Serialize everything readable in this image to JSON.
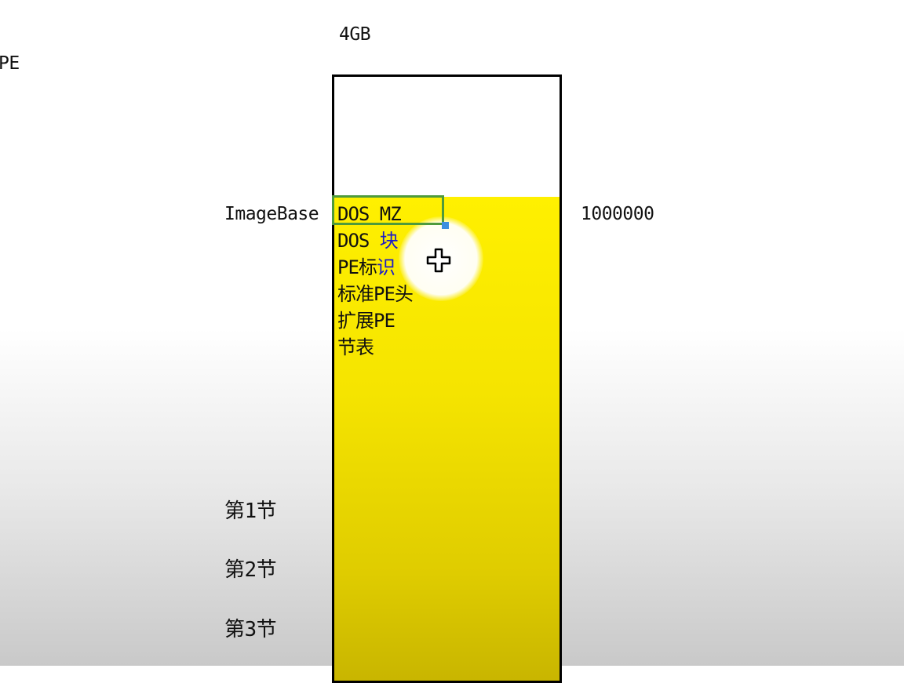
{
  "labels": {
    "pe_cut": "PE",
    "size": "4GB",
    "imagebase": "ImageBase",
    "address": "1000000"
  },
  "memory_image": {
    "headers": {
      "dos_mz_a": "DOS MZ",
      "dos_block_a": "DOS ",
      "dos_block_b": "块",
      "pe_sig_a": "PE标",
      "pe_sig_b": "识",
      "std_header": "标准PE头",
      "ext_header": "扩展PE",
      "section_table": "节表"
    },
    "sections": {
      "s1": "第1节",
      "s2": "第2节",
      "s3": "第3节"
    }
  },
  "colors": {
    "pe_fill": "#fff000",
    "selection": "#4e9a3c",
    "handle": "#3c8fe0"
  },
  "icons": {
    "cursor": "move-cursor-icon"
  }
}
